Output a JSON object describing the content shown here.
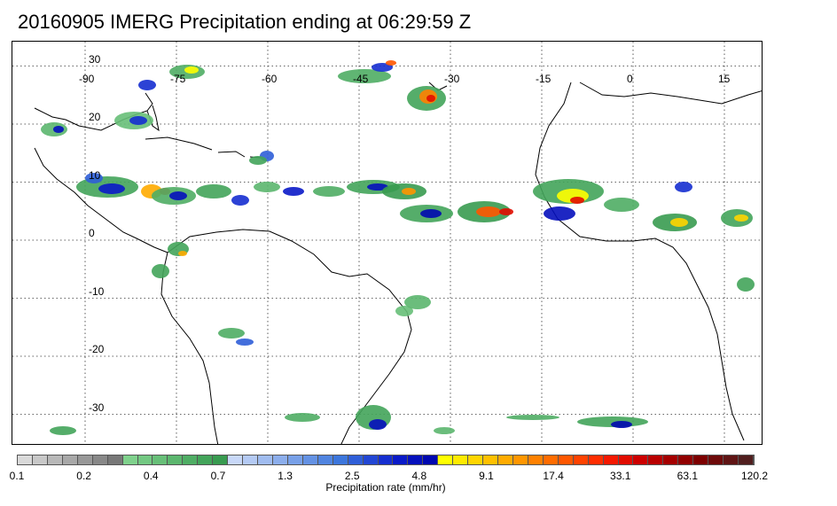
{
  "title": "20160905 IMERG Precipitation ending at 06:29:59 Z",
  "map": {
    "lon_labels": [
      "-90",
      "-75",
      "-60",
      "-45",
      "-30",
      "-15",
      "0",
      "15"
    ],
    "lat_labels": [
      "30",
      "20",
      "10",
      "0",
      "-10",
      "-20",
      "-30"
    ],
    "grid": "dotted",
    "colors": {
      "grid": "#333333",
      "coast": "#000000",
      "frame": "#000000"
    }
  },
  "colorbar": {
    "label": "Precipitation rate (mm/hr)",
    "ticks": [
      "0.1",
      "0.2",
      "0.4",
      "0.7",
      "1.3",
      "2.5",
      "4.8",
      "9.1",
      "17.4",
      "33.1",
      "63.1",
      "120.2"
    ],
    "colors": [
      "#d9d9d9",
      "#c8c8c8",
      "#b8b8b8",
      "#a8a8a8",
      "#989898",
      "#888888",
      "#787878",
      "#7fd18c",
      "#73c882",
      "#67bf78",
      "#5bb66e",
      "#4fad64",
      "#43a45a",
      "#389b50",
      "#c8d8f8",
      "#b4caf4",
      "#a0bcf0",
      "#8caeec",
      "#78a0e8",
      "#6492e4",
      "#5084e0",
      "#3c76dc",
      "#2f5ed8",
      "#2246d4",
      "#152ed0",
      "#0a1ac8",
      "#0510bc",
      "#0008b0",
      "#ffff00",
      "#ffea00",
      "#ffd500",
      "#ffc000",
      "#ffab00",
      "#ff9600",
      "#ff8100",
      "#ff6c00",
      "#ff5700",
      "#ff4200",
      "#ff2d00",
      "#f51800",
      "#e10c00",
      "#cd0000",
      "#b90000",
      "#a50000",
      "#910000",
      "#7d0000",
      "#6e0a0a",
      "#5f1414",
      "#501e1e"
    ]
  }
}
